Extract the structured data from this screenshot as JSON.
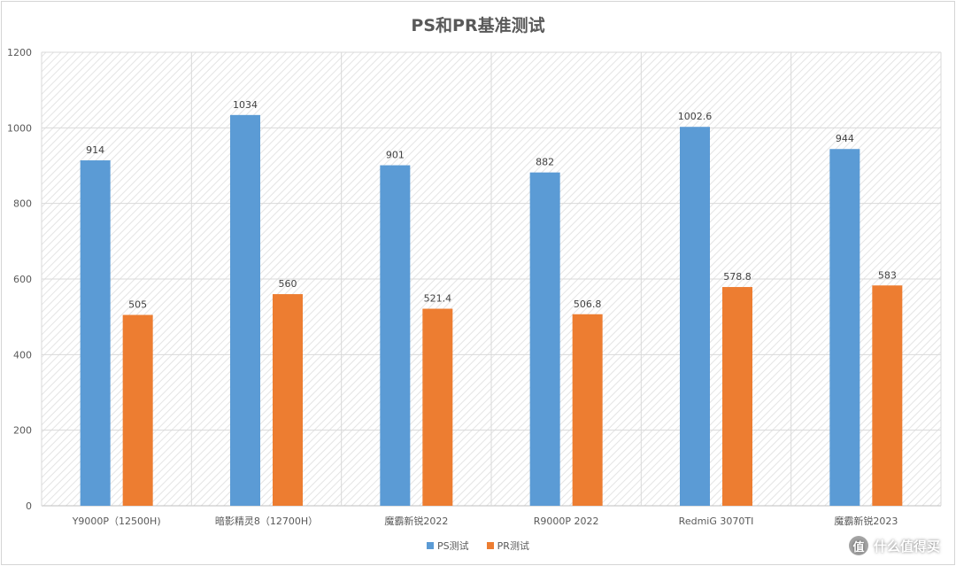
{
  "chart_data": {
    "type": "bar",
    "title": "PS和PR基准测试",
    "categories": [
      "Y9000P（12500H)",
      "暗影精灵8（12700H）",
      "魔霸新锐2022",
      "R9000P 2022",
      "RedmiG 3070TI",
      "魔霸新锐2023"
    ],
    "series": [
      {
        "name": "PS测试",
        "color": "#5b9bd5",
        "values": [
          914,
          1034,
          901,
          882,
          1002.6,
          944
        ]
      },
      {
        "name": "PR测试",
        "color": "#ed7d31",
        "values": [
          505,
          560,
          521.4,
          506.8,
          578.8,
          583
        ]
      }
    ],
    "ylim": [
      0,
      1200
    ],
    "yticks": [
      0,
      200,
      400,
      600,
      800,
      1000,
      1200
    ],
    "grid": true,
    "legend_position": "bottom"
  },
  "watermark": {
    "badge": "值",
    "text": "什么值得买"
  }
}
